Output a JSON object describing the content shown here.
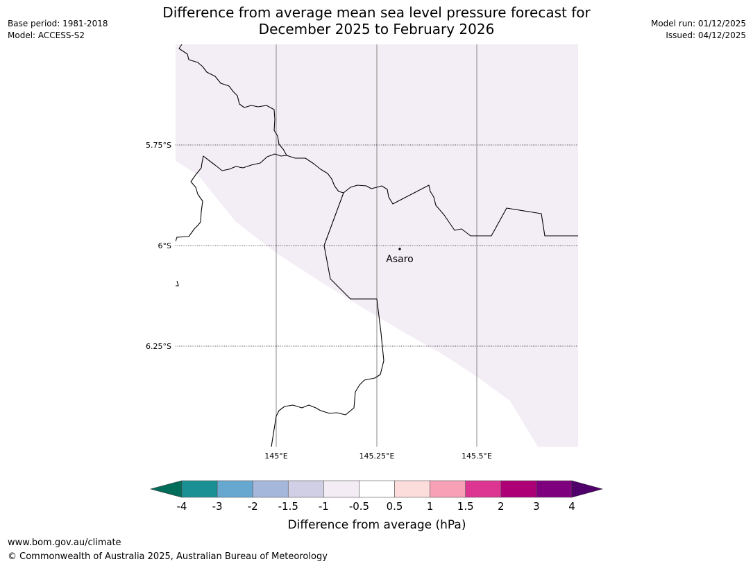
{
  "title": {
    "line1": "Difference from average mean sea level pressure forecast for",
    "line2": "December 2025 to February 2026"
  },
  "meta_left": {
    "base_period": "Base period: 1981-2018",
    "model": "Model: ACCESS-S2"
  },
  "meta_right": {
    "model_run": "Model run: 01/12/2025",
    "issued": "Issued: 04/12/2025"
  },
  "map": {
    "lat_labels": [
      "5.75°S",
      "6°S",
      "6.25°S"
    ],
    "lon_labels": [
      "145°E",
      "145.25°E",
      "145.5°E"
    ],
    "places": [
      {
        "name": "Asaro",
        "lat": -6.01,
        "lon": 145.3
      }
    ],
    "shading_value_hpa": "-0.5 to 0 (light lavender)"
  },
  "colorbar": {
    "label": "Difference from average (hPa)",
    "ticks": [
      "-4",
      "-3",
      "-2",
      "-1.5",
      "-1",
      "-0.5",
      "0.5",
      "1",
      "1.5",
      "2",
      "3",
      "4"
    ],
    "colors": [
      "#1a9094",
      "#66a8d0",
      "#a6b7dc",
      "#d0cfe6",
      "#f4ecf5",
      "#ffffff",
      "#fddcdc",
      "#f7a0b6",
      "#dc3592",
      "#ad0077",
      "#7e007e"
    ],
    "under_color": "#006c5a",
    "over_color": "#4f006b",
    "map_fill_color": "#f3edf5"
  },
  "footer": {
    "url": "www.bom.gov.au/climate",
    "copyright": "© Commonwealth of Australia 2025, Australian Bureau of Meteorology"
  }
}
